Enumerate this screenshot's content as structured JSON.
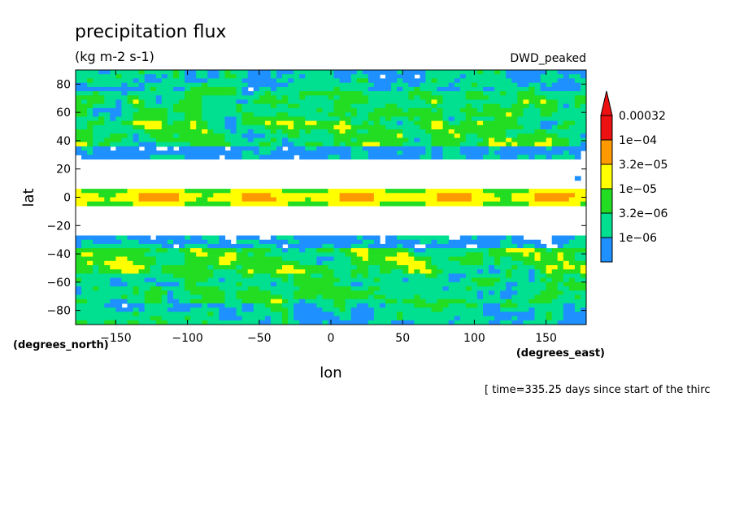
{
  "chart_data": {
    "type": "heatmap",
    "title": "precipitation flux",
    "units": "(kg m-2 s-1)",
    "subtitle": "DWD_peaked",
    "xlabel": "lon",
    "ylabel": "lat",
    "xunits": "(degrees_east)",
    "yunits": "(degrees_north)",
    "footnote": "[ time=335.25 days since start of the thirc",
    "xlim": [
      -178,
      178
    ],
    "ylim": [
      -90,
      90
    ],
    "xticks": [
      -150,
      -100,
      -50,
      0,
      50,
      100,
      150
    ],
    "yticks": [
      -80,
      -60,
      -40,
      -20,
      0,
      20,
      40,
      60,
      80
    ],
    "color_levels": [
      "1e-06",
      "3.2e-06",
      "1e-05",
      "3.2e-05",
      "1e-04",
      "0.00032"
    ],
    "colors": {
      "level_1e-06": "#1e90ff",
      "level_3.2e-06": "#00e090",
      "level_1e-05": "#22dd22",
      "level_3.2e-05": "#ffff00",
      "level_1e-04": "#ff9900",
      "level_0.00032": "#ee1111",
      "below_min": "#ffffff"
    },
    "features": {
      "itcz_latitude": 0,
      "storm_track_north_lat": 45,
      "storm_track_south_lat": -45,
      "dry_subtropics_lat": [
        20,
        -20
      ]
    }
  }
}
